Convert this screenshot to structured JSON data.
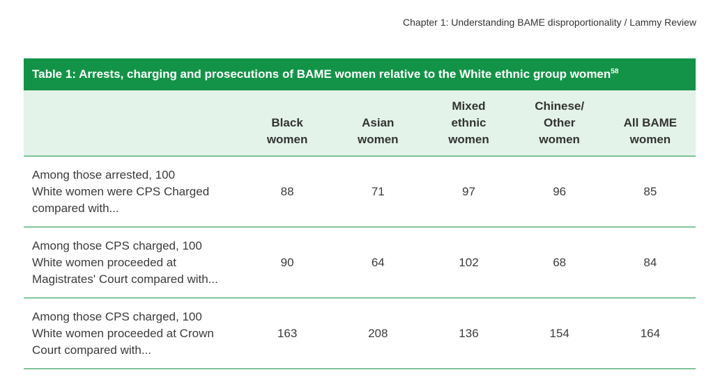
{
  "running_header": "Chapter 1: Understanding BAME disproportionality / Lammy Review",
  "table": {
    "caption": "Table 1: Arrests, charging and prosecutions of BAME women relative to the White ethnic group women",
    "footnote_ref": "58",
    "columns": [
      [
        "Black",
        "women"
      ],
      [
        "Asian",
        "women"
      ],
      [
        "Mixed",
        "ethnic",
        "women"
      ],
      [
        "Chinese/",
        "Other",
        "women"
      ],
      [
        "All BAME",
        "women"
      ]
    ],
    "rows": [
      {
        "label": [
          "Among those arrested, 100",
          "White women were CPS Charged",
          "compared with..."
        ],
        "values": [
          "88",
          "71",
          "97",
          "96",
          "85"
        ]
      },
      {
        "label": [
          "Among those CPS charged, 100",
          "White women proceeded at",
          "Magistrates' Court compared with..."
        ],
        "values": [
          "90",
          "64",
          "102",
          "68",
          "84"
        ]
      },
      {
        "label": [
          "Among those CPS charged, 100",
          "White women proceeded at Crown",
          "Court compared with..."
        ],
        "values": [
          "163",
          "208",
          "136",
          "154",
          "164"
        ]
      }
    ]
  },
  "colors": {
    "accent_green": "#139347",
    "header_row_bg": "#e3f3e9"
  }
}
